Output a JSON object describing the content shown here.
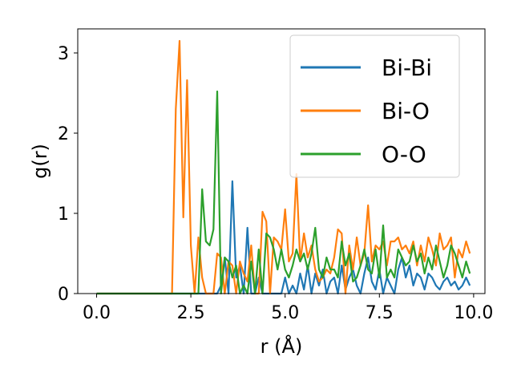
{
  "chart_data": {
    "type": "line",
    "title": "",
    "xlabel": "r (Å)",
    "ylabel": "g(r)",
    "xlim": [
      -0.5,
      10.3
    ],
    "ylim": [
      0,
      3.3
    ],
    "xticks": [
      0.0,
      2.5,
      5.0,
      7.5,
      10.0
    ],
    "xtick_labels": [
      "0.0",
      "2.5",
      "5.0",
      "7.5",
      "10.0"
    ],
    "yticks": [
      0,
      1,
      2,
      3
    ],
    "ytick_labels": [
      "0",
      "1",
      "2",
      "3"
    ],
    "grid": false,
    "legend_position": "top-right",
    "series": [
      {
        "name": "Bi-Bi",
        "color": "#1f77b4",
        "x": [
          0.0,
          3.2,
          3.3,
          3.4,
          3.5,
          3.6,
          3.7,
          3.8,
          3.9,
          4.0,
          4.1,
          4.2,
          4.3,
          4.4,
          4.5,
          4.6,
          4.7,
          4.8,
          4.9,
          5.0,
          5.1,
          5.2,
          5.3,
          5.4,
          5.5,
          5.6,
          5.7,
          5.8,
          5.9,
          6.0,
          6.1,
          6.2,
          6.3,
          6.4,
          6.5,
          6.6,
          6.7,
          6.8,
          6.9,
          7.0,
          7.1,
          7.2,
          7.3,
          7.4,
          7.5,
          7.6,
          7.7,
          7.8,
          7.9,
          8.0,
          8.1,
          8.2,
          8.3,
          8.4,
          8.5,
          8.6,
          8.7,
          8.8,
          8.9,
          9.0,
          9.1,
          9.2,
          9.3,
          9.4,
          9.5,
          9.6,
          9.7,
          9.8,
          9.9
        ],
        "values": [
          0.0,
          0.0,
          0.1,
          0.45,
          0.0,
          1.4,
          0.2,
          0.35,
          0.0,
          0.82,
          0.0,
          0.0,
          0.2,
          0.0,
          0.0,
          0.0,
          0.0,
          0.0,
          0.0,
          0.2,
          0.0,
          0.1,
          0.0,
          0.25,
          0.05,
          0.35,
          0.0,
          0.25,
          0.1,
          0.3,
          0.0,
          0.15,
          0.2,
          0.0,
          0.35,
          0.05,
          0.2,
          0.3,
          0.1,
          0.0,
          0.25,
          0.45,
          0.15,
          0.05,
          0.3,
          0.0,
          0.2,
          0.1,
          0.0,
          0.3,
          0.45,
          0.2,
          0.35,
          0.1,
          0.25,
          0.2,
          0.05,
          0.25,
          0.2,
          0.1,
          0.05,
          0.15,
          0.2,
          0.1,
          0.15,
          0.05,
          0.1,
          0.2,
          0.1
        ]
      },
      {
        "name": "Bi-O",
        "color": "#ff7f0e",
        "x": [
          0.0,
          2.0,
          2.1,
          2.2,
          2.3,
          2.4,
          2.5,
          2.6,
          2.7,
          2.8,
          2.9,
          3.0,
          3.1,
          3.2,
          3.3,
          3.4,
          3.5,
          3.6,
          3.7,
          3.8,
          3.9,
          4.0,
          4.1,
          4.2,
          4.3,
          4.4,
          4.5,
          4.6,
          4.7,
          4.8,
          4.9,
          5.0,
          5.1,
          5.2,
          5.3,
          5.4,
          5.5,
          5.6,
          5.7,
          5.8,
          5.9,
          6.0,
          6.1,
          6.2,
          6.3,
          6.4,
          6.5,
          6.6,
          6.7,
          6.8,
          6.9,
          7.0,
          7.1,
          7.2,
          7.3,
          7.4,
          7.5,
          7.6,
          7.7,
          7.8,
          7.9,
          8.0,
          8.1,
          8.2,
          8.3,
          8.4,
          8.5,
          8.6,
          8.7,
          8.8,
          8.9,
          9.0,
          9.1,
          9.2,
          9.3,
          9.4,
          9.5,
          9.6,
          9.7,
          9.8,
          9.9
        ],
        "values": [
          0.0,
          0.0,
          2.3,
          3.15,
          0.95,
          2.66,
          0.6,
          0.0,
          0.7,
          0.2,
          0.0,
          0.0,
          0.0,
          0.5,
          0.45,
          0.0,
          0.4,
          0.35,
          0.0,
          0.4,
          0.25,
          0.15,
          0.6,
          0.0,
          0.0,
          1.02,
          0.9,
          0.0,
          0.7,
          0.65,
          0.55,
          1.05,
          0.4,
          0.5,
          1.49,
          0.4,
          0.75,
          0.45,
          0.6,
          0.3,
          0.15,
          0.2,
          0.3,
          0.25,
          0.45,
          0.8,
          0.75,
          0.0,
          0.6,
          0.3,
          0.7,
          0.35,
          0.5,
          1.1,
          0.4,
          0.6,
          0.55,
          0.65,
          0.35,
          0.65,
          0.65,
          0.7,
          0.55,
          0.6,
          0.5,
          0.65,
          0.35,
          0.6,
          0.4,
          0.7,
          0.55,
          0.35,
          0.75,
          0.55,
          0.6,
          0.7,
          0.2,
          0.55,
          0.45,
          0.65,
          0.5
        ]
      },
      {
        "name": "O-O",
        "color": "#2ca02c",
        "x": [
          0.0,
          2.6,
          2.7,
          2.8,
          2.9,
          3.0,
          3.1,
          3.2,
          3.3,
          3.4,
          3.5,
          3.6,
          3.7,
          3.8,
          3.9,
          4.0,
          4.1,
          4.2,
          4.3,
          4.4,
          4.5,
          4.6,
          4.7,
          4.8,
          4.9,
          5.0,
          5.1,
          5.2,
          5.3,
          5.4,
          5.5,
          5.6,
          5.7,
          5.8,
          5.9,
          6.0,
          6.1,
          6.2,
          6.3,
          6.4,
          6.5,
          6.6,
          6.7,
          6.8,
          6.9,
          7.0,
          7.1,
          7.2,
          7.3,
          7.4,
          7.5,
          7.6,
          7.7,
          7.8,
          7.9,
          8.0,
          8.1,
          8.2,
          8.3,
          8.4,
          8.5,
          8.6,
          8.7,
          8.8,
          8.9,
          9.0,
          9.1,
          9.2,
          9.3,
          9.4,
          9.5,
          9.6,
          9.7,
          9.8,
          9.9
        ],
        "values": [
          0.0,
          0.0,
          0.0,
          1.3,
          0.65,
          0.6,
          0.8,
          2.52,
          0.0,
          0.45,
          0.4,
          0.2,
          0.35,
          0.0,
          0.1,
          0.0,
          0.4,
          0.0,
          0.55,
          0.0,
          0.75,
          0.7,
          0.55,
          0.3,
          0.55,
          0.3,
          0.2,
          0.35,
          0.55,
          0.4,
          0.5,
          0.3,
          0.5,
          0.82,
          0.3,
          0.2,
          0.45,
          0.3,
          0.3,
          0.2,
          0.65,
          0.35,
          0.5,
          0.15,
          0.2,
          0.35,
          0.55,
          0.3,
          0.25,
          0.55,
          0.2,
          0.85,
          0.2,
          0.3,
          0.2,
          0.55,
          0.45,
          0.35,
          0.4,
          0.6,
          0.4,
          0.5,
          0.25,
          0.45,
          0.3,
          0.6,
          0.4,
          0.2,
          0.35,
          0.6,
          0.5,
          0.35,
          0.2,
          0.4,
          0.25
        ]
      }
    ]
  }
}
